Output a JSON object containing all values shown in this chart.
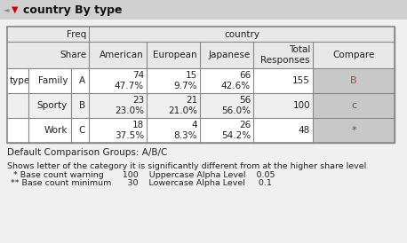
{
  "title": "country By type",
  "bg_color": "#f0f0f0",
  "header_bg": "#e8e8e8",
  "compare_bg": "#c8c8c8",
  "row_colors": [
    "#ffffff",
    "#efefef",
    "#ffffff"
  ],
  "rows": [
    {
      "type_label": "type",
      "sub_label": "Family",
      "letter": "A",
      "freq": [
        "74",
        "15",
        "66",
        "155"
      ],
      "share": [
        "47.7%",
        "9.7%",
        "42.6%",
        ""
      ],
      "compare": "B",
      "compare_color": "#cc3333"
    },
    {
      "type_label": "",
      "sub_label": "Sporty",
      "letter": "B",
      "freq": [
        "23",
        "21",
        "56",
        "100"
      ],
      "share": [
        "23.0%",
        "21.0%",
        "56.0%",
        ""
      ],
      "compare": "c",
      "compare_color": "#555555"
    },
    {
      "type_label": "",
      "sub_label": "Work",
      "letter": "C",
      "freq": [
        "18",
        "4",
        "26",
        "48"
      ],
      "share": [
        "37.5%",
        "8.3%",
        "54.2%",
        ""
      ],
      "compare": "*",
      "compare_color": "#555555"
    }
  ],
  "footer1": "Default Comparison Groups: A/B/C",
  "footer2": "Shows letter of the category it is significantly different from at the higher share level",
  "footer3": " * Base count warning       100    Uppercase Alpha Level    0.05",
  "footer4": "** Base count minimum      30    Lowercase Alpha Level     0.1"
}
